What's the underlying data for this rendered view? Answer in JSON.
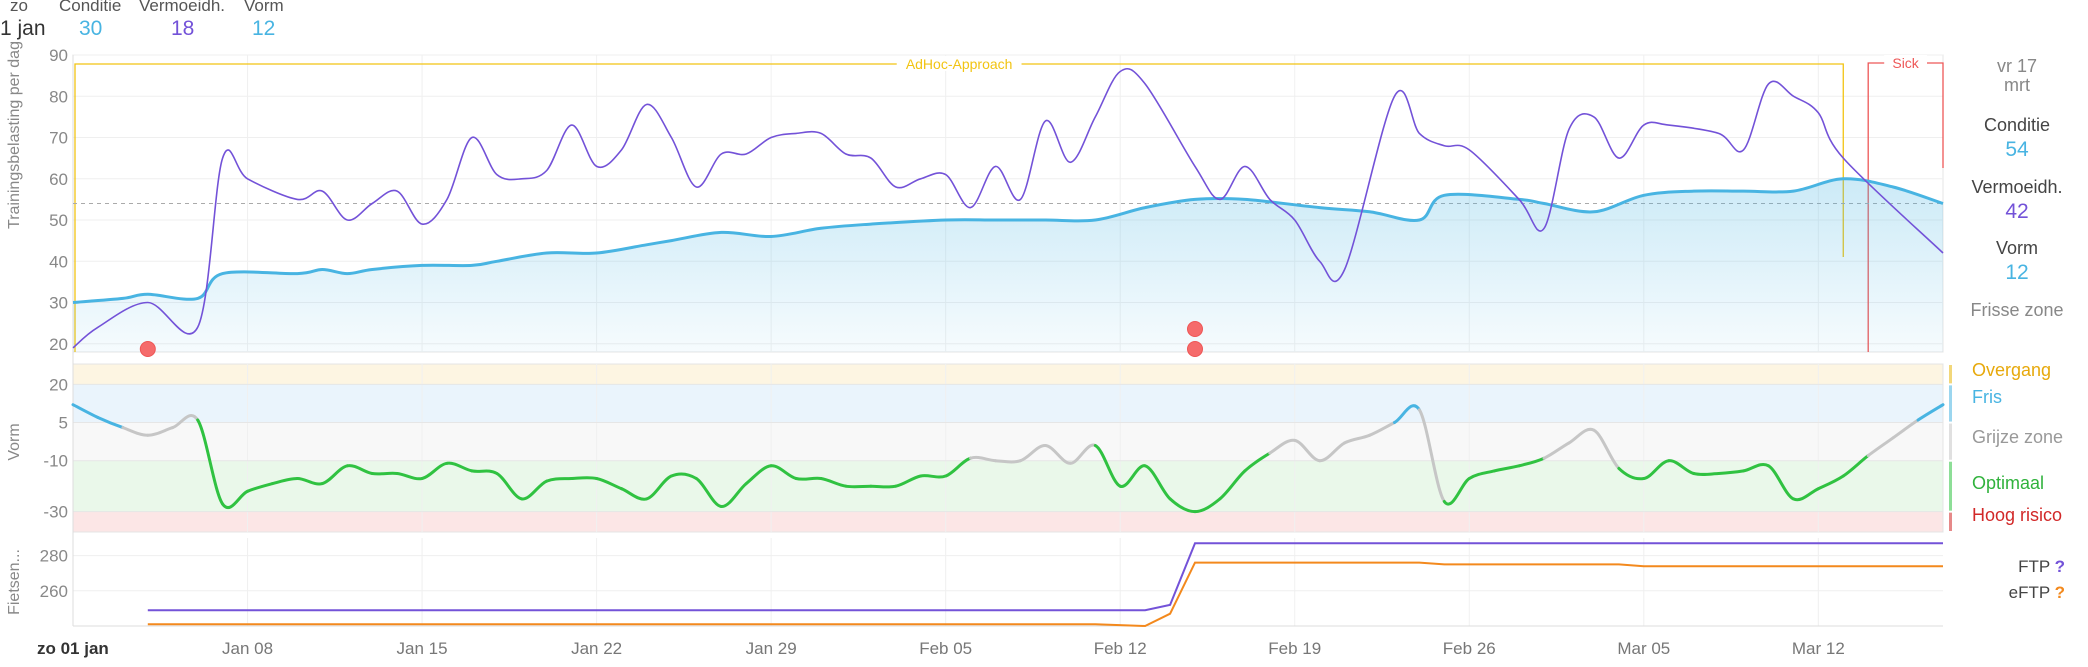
{
  "header": {
    "day": "zo",
    "date": "1 jan",
    "fitness_label": "Conditie",
    "fitness_value": "30",
    "fatigue_label": "Vermoeidh.",
    "fatigue_value": "18",
    "form_label": "Vorm",
    "form_value": "12"
  },
  "sidebar": {
    "date_line1": "vr 17",
    "date_line2": "mrt",
    "fitness_label": "Conditie",
    "fitness_value": "54",
    "fatigue_label": "Vermoeidh.",
    "fatigue_value": "42",
    "form_label": "Vorm",
    "form_value": "12",
    "zone_label": "Frisse zone"
  },
  "form_zones": {
    "transition": "Overgang",
    "fresh": "Fris",
    "grey": "Grijze zone",
    "optimal": "Optimaal",
    "high_risk": "Hoog risico"
  },
  "ftp_legend": {
    "ftp_label": "FTP",
    "ftp_value": "?",
    "eftp_label": "eFTP",
    "eftp_value": "?"
  },
  "colors": {
    "fitness": "#48b4e2",
    "fatigue": "#7352d8",
    "optimal": "#30c241",
    "grey_zone": "#c6c6c6",
    "high_risk": "#d22828",
    "transition": "#e7b70c",
    "eftp": "#f3891d",
    "event": "#f56b6b"
  },
  "chart_data": [
    {
      "type": "area",
      "title": "",
      "ylabel": "Trainingsbelasting per dag",
      "ylim": [
        18,
        90
      ],
      "yticks": [
        20,
        30,
        40,
        50,
        60,
        70,
        80,
        90
      ],
      "x_start": "2023-01-01",
      "x_end": "2023-03-17",
      "x_ticks": [
        "zo 01 jan",
        "Jan 08",
        "Jan 15",
        "Jan 22",
        "Jan 29",
        "Feb 05",
        "Feb 12",
        "Feb 19",
        "Feb 26",
        "Mar 05",
        "Mar 12"
      ],
      "reference_line": 54,
      "series": [
        {
          "name": "Conditie",
          "x": [
            "2023-01-01",
            "2023-01-03",
            "2023-01-04",
            "2023-01-06",
            "2023-01-07",
            "2023-01-10",
            "2023-01-11",
            "2023-01-12",
            "2023-01-13",
            "2023-01-15",
            "2023-01-17",
            "2023-01-18",
            "2023-01-20",
            "2023-01-22",
            "2023-01-24",
            "2023-01-25",
            "2023-01-27",
            "2023-01-29",
            "2023-01-31",
            "2023-02-02",
            "2023-02-05",
            "2023-02-07",
            "2023-02-09",
            "2023-02-11",
            "2023-02-13",
            "2023-02-15",
            "2023-02-17",
            "2023-02-20",
            "2023-02-22",
            "2023-02-24",
            "2023-02-25",
            "2023-02-28",
            "2023-03-01",
            "2023-03-03",
            "2023-03-05",
            "2023-03-07",
            "2023-03-09",
            "2023-03-11",
            "2023-03-13",
            "2023-03-15",
            "2023-03-17"
          ],
          "values": [
            30,
            31,
            32,
            31,
            37,
            37,
            38,
            37,
            38,
            39,
            39,
            40,
            42,
            42,
            44,
            45,
            47,
            46,
            48,
            49,
            50,
            50,
            50,
            50,
            53,
            55,
            55,
            53,
            52,
            50,
            56,
            55,
            54,
            52,
            56,
            57,
            57,
            57,
            60,
            58,
            54
          ]
        },
        {
          "name": "Vermoeidh.",
          "x": [
            "2023-01-01",
            "2023-01-02",
            "2023-01-04",
            "2023-01-06",
            "2023-01-07",
            "2023-01-08",
            "2023-01-10",
            "2023-01-11",
            "2023-01-12",
            "2023-01-13",
            "2023-01-14",
            "2023-01-15",
            "2023-01-16",
            "2023-01-17",
            "2023-01-18",
            "2023-01-19",
            "2023-01-20",
            "2023-01-21",
            "2023-01-22",
            "2023-01-23",
            "2023-01-24",
            "2023-01-25",
            "2023-01-26",
            "2023-01-27",
            "2023-01-28",
            "2023-01-29",
            "2023-01-30",
            "2023-01-31",
            "2023-02-01",
            "2023-02-02",
            "2023-02-03",
            "2023-02-04",
            "2023-02-05",
            "2023-02-06",
            "2023-02-07",
            "2023-02-08",
            "2023-02-09",
            "2023-02-10",
            "2023-02-11",
            "2023-02-12",
            "2023-02-13",
            "2023-02-15",
            "2023-02-16",
            "2023-02-17",
            "2023-02-18",
            "2023-02-19",
            "2023-02-20",
            "2023-02-21",
            "2023-02-23",
            "2023-02-24",
            "2023-02-25",
            "2023-02-26",
            "2023-02-28",
            "2023-03-01",
            "2023-03-02",
            "2023-03-03",
            "2023-03-04",
            "2023-03-05",
            "2023-03-06",
            "2023-03-08",
            "2023-03-09",
            "2023-03-10",
            "2023-03-11",
            "2023-03-12",
            "2023-03-13",
            "2023-03-17"
          ],
          "values": [
            19,
            24,
            30,
            24,
            65,
            60,
            55,
            57,
            50,
            54,
            57,
            49,
            55,
            70,
            61,
            60,
            62,
            73,
            63,
            67,
            78,
            70,
            58,
            66,
            66,
            70,
            71,
            71,
            66,
            65,
            58,
            60,
            61,
            53,
            63,
            55,
            74,
            64,
            75,
            86,
            83,
            63,
            55,
            63,
            55,
            50,
            40,
            38,
            80,
            71,
            68,
            67,
            55,
            48,
            72,
            75,
            65,
            73,
            73,
            71,
            67,
            83,
            80,
            76,
            65,
            42
          ]
        }
      ],
      "events": [
        {
          "date": "2023-01-04",
          "level": 1
        },
        {
          "date": "2023-02-15",
          "level": 2
        },
        {
          "date": "2023-02-15",
          "level": 1
        }
      ],
      "annotations": [
        {
          "label": "AdHoc-Approach",
          "start": "2023-01-01",
          "end": "2023-03-13",
          "color": "#f2c413"
        },
        {
          "label": "Sick",
          "start": "2023-03-14",
          "end": "2023-03-17",
          "color": "#ee5757"
        }
      ]
    },
    {
      "type": "line",
      "title": "",
      "ylabel": "Vorm",
      "ylim": [
        -38,
        28
      ],
      "yticks": [
        20,
        5,
        -10,
        -30
      ],
      "zones": [
        {
          "name": "Overgang",
          "from": 20,
          "to": 28,
          "color": "#e7b70c"
        },
        {
          "name": "Fris",
          "from": 5,
          "to": 20,
          "color": "#48b4e2"
        },
        {
          "name": "Grijze zone",
          "from": -10,
          "to": 5,
          "color": "#c6c6c6"
        },
        {
          "name": "Optimaal",
          "from": -30,
          "to": -10,
          "color": "#30c241"
        },
        {
          "name": "Hoog risico",
          "from": -38,
          "to": -30,
          "color": "#d22828"
        }
      ],
      "series": [
        {
          "name": "Vorm",
          "x": [
            "2023-01-01",
            "2023-01-02",
            "2023-01-03",
            "2023-01-04",
            "2023-01-05",
            "2023-01-06",
            "2023-01-07",
            "2023-01-08",
            "2023-01-09",
            "2023-01-10",
            "2023-01-11",
            "2023-01-12",
            "2023-01-13",
            "2023-01-14",
            "2023-01-15",
            "2023-01-16",
            "2023-01-17",
            "2023-01-18",
            "2023-01-19",
            "2023-01-20",
            "2023-01-21",
            "2023-01-22",
            "2023-01-23",
            "2023-01-24",
            "2023-01-25",
            "2023-01-26",
            "2023-01-27",
            "2023-01-28",
            "2023-01-29",
            "2023-01-30",
            "2023-01-31",
            "2023-02-01",
            "2023-02-02",
            "2023-02-03",
            "2023-02-04",
            "2023-02-05",
            "2023-02-06",
            "2023-02-07",
            "2023-02-08",
            "2023-02-09",
            "2023-02-10",
            "2023-02-11",
            "2023-02-12",
            "2023-02-13",
            "2023-02-14",
            "2023-02-15",
            "2023-02-16",
            "2023-02-17",
            "2023-02-18",
            "2023-02-19",
            "2023-02-20",
            "2023-02-21",
            "2023-02-22",
            "2023-02-23",
            "2023-02-24",
            "2023-02-25",
            "2023-02-26",
            "2023-02-27",
            "2023-02-28",
            "2023-03-01",
            "2023-03-02",
            "2023-03-03",
            "2023-03-04",
            "2023-03-05",
            "2023-03-06",
            "2023-03-07",
            "2023-03-08",
            "2023-03-09",
            "2023-03-10",
            "2023-03-11",
            "2023-03-12",
            "2023-03-13",
            "2023-03-14",
            "2023-03-15",
            "2023-03-16",
            "2023-03-17"
          ],
          "values": [
            12,
            7,
            3,
            0,
            3,
            6,
            -27,
            -22,
            -19,
            -17,
            -19,
            -12,
            -15,
            -15,
            -17,
            -11,
            -14,
            -15,
            -25,
            -18,
            -17,
            -17,
            -21,
            -25,
            -16,
            -17,
            -28,
            -19,
            -12,
            -17,
            -17,
            -20,
            -20,
            -20,
            -16,
            -16,
            -9,
            -10,
            -10,
            -4,
            -11,
            -4,
            -20,
            -12,
            -25,
            -30,
            -25,
            -14,
            -7,
            -2,
            -10,
            -3,
            0,
            5,
            10,
            -26,
            -17,
            -14,
            -12,
            -9,
            -3,
            2,
            -13,
            -17,
            -10,
            -15,
            -15,
            -14,
            -12,
            -25,
            -21,
            -16,
            -8,
            -1,
            6,
            12
          ]
        }
      ]
    },
    {
      "type": "line",
      "title": "",
      "ylabel": "Fietsen...",
      "ylim": [
        240,
        290
      ],
      "yticks": [
        260,
        280
      ],
      "x_ticks": [
        "zo 01 jan",
        "Jan 08",
        "Jan 15",
        "Jan 22",
        "Jan 29",
        "Feb 05",
        "Feb 12",
        "Feb 19",
        "Feb 26",
        "Mar 05",
        "Mar 12"
      ],
      "series": [
        {
          "name": "FTP",
          "x": [
            "2023-01-04",
            "2023-02-13",
            "2023-02-14",
            "2023-02-15",
            "2023-03-17"
          ],
          "values": [
            249,
            249,
            252,
            287,
            287
          ]
        },
        {
          "name": "eFTP",
          "x": [
            "2023-01-04",
            "2023-02-11",
            "2023-02-13",
            "2023-02-14",
            "2023-02-15",
            "2023-02-24",
            "2023-02-25",
            "2023-03-04",
            "2023-03-05",
            "2023-03-17"
          ],
          "values": [
            241,
            241,
            240,
            247,
            276,
            276,
            275,
            275,
            274,
            274
          ]
        }
      ]
    }
  ]
}
